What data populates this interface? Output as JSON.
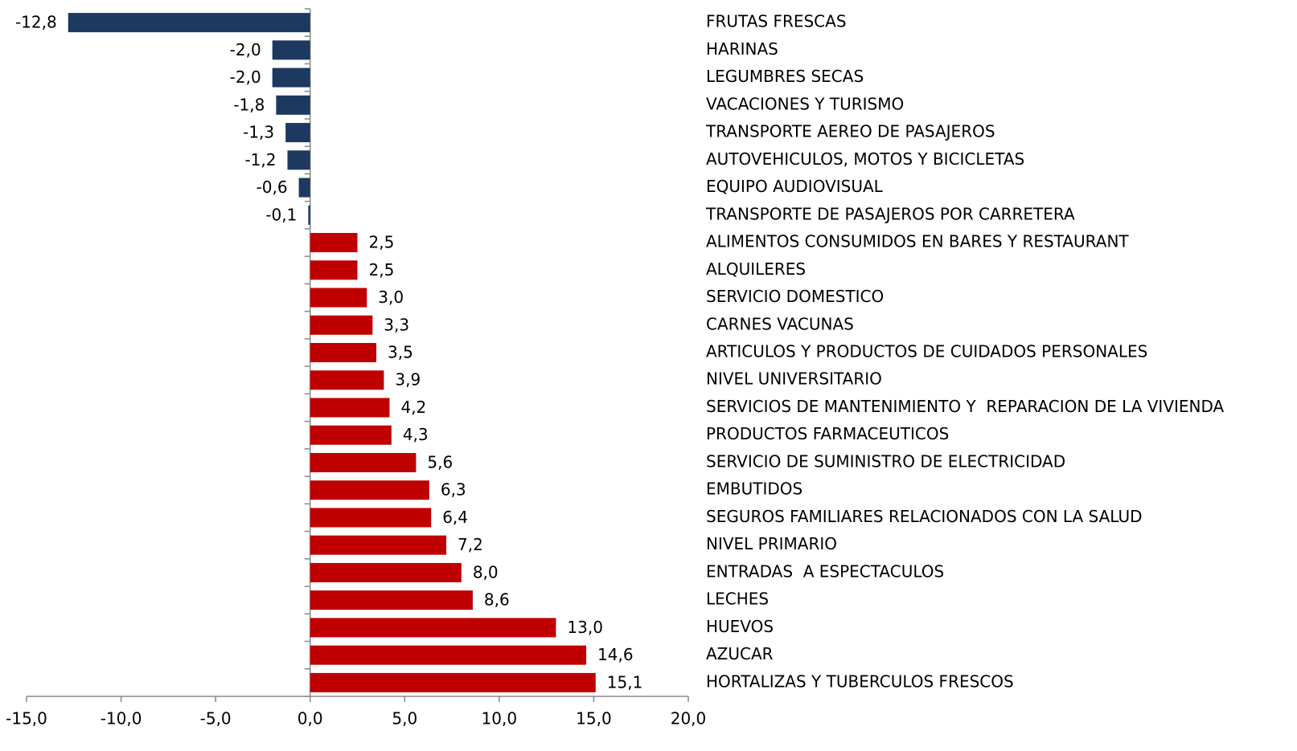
{
  "chart_data": {
    "type": "barh",
    "categories": [
      "FRUTAS FRESCAS",
      "HARINAS",
      "LEGUMBRES SECAS",
      "VACACIONES Y TURISMO",
      "TRANSPORTE AEREO DE PASAJEROS",
      "AUTOVEHICULOS, MOTOS Y BICICLETAS",
      "EQUIPO AUDIOVISUAL",
      "TRANSPORTE DE PASAJEROS POR CARRETERA",
      "ALIMENTOS CONSUMIDOS EN BARES Y RESTAURANT",
      "ALQUILERES",
      "SERVICIO DOMESTICO",
      "CARNES VACUNAS",
      "ARTICULOS Y PRODUCTOS DE CUIDADOS PERSONALES",
      "NIVEL UNIVERSITARIO",
      "SERVICIOS DE MANTENIMIENTO Y  REPARACION DE LA VIVIENDA",
      "PRODUCTOS FARMACEUTICOS",
      "SERVICIO DE SUMINISTRO DE ELECTRICIDAD",
      "EMBUTIDOS",
      "SEGUROS FAMILIARES RELACIONADOS CON LA SALUD",
      "NIVEL PRIMARIO",
      "ENTRADAS  A ESPECTACULOS",
      "LECHES",
      "HUEVOS",
      "AZUCAR",
      "HORTALIZAS Y TUBERCULOS FRESCOS"
    ],
    "values": [
      -12.8,
      -2.0,
      -2.0,
      -1.8,
      -1.3,
      -1.2,
      -0.6,
      -0.1,
      2.5,
      2.5,
      3.0,
      3.3,
      3.5,
      3.9,
      4.2,
      4.3,
      5.6,
      6.3,
      6.4,
      7.2,
      8.0,
      8.6,
      13.0,
      14.6,
      15.1
    ],
    "value_labels": [
      "-12,8",
      "-2,0",
      "-2,0",
      "-1,8",
      "-1,3",
      "-1,2",
      "-0,6",
      "-0,1",
      "2,5",
      "2,5",
      "3,0",
      "3,3",
      "3,5",
      "3,9",
      "4,2",
      "4,3",
      "5,6",
      "6,3",
      "6,4",
      "7,2",
      "8,0",
      "8,6",
      "13,0",
      "14,6",
      "15,1"
    ],
    "color_negative": "#1d3960",
    "color_positive": "#c00000",
    "xlim": [
      -15,
      20
    ],
    "xticks": [
      {
        "value": -15,
        "label": "-15,0"
      },
      {
        "value": -10,
        "label": "-10,0"
      },
      {
        "value": -5,
        "label": "-5,0"
      },
      {
        "value": 0,
        "label": "0,0"
      },
      {
        "value": 5,
        "label": "5,0"
      },
      {
        "value": 10,
        "label": "10,0"
      },
      {
        "value": 15,
        "label": "15,0"
      },
      {
        "value": 20,
        "label": "20,0"
      }
    ]
  }
}
